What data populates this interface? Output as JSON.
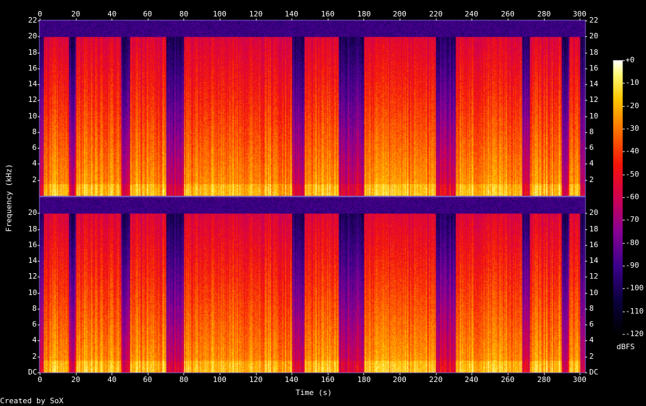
{
  "chart_data": {
    "type": "heatmap",
    "title": "",
    "xlabel": "Time (s)",
    "ylabel": "Frequency (kHz)",
    "x_ticks": [
      0,
      20,
      40,
      60,
      80,
      100,
      120,
      140,
      160,
      180,
      200,
      220,
      240,
      260,
      280,
      300
    ],
    "xlim": [
      0,
      303
    ],
    "y_ticks_top": [
      "2",
      "4",
      "6",
      "8",
      "10",
      "12",
      "14",
      "16",
      "18",
      "20",
      "22"
    ],
    "y_ticks_bottom": [
      "DC",
      "2",
      "4",
      "6",
      "8",
      "10",
      "12",
      "14",
      "16",
      "18",
      "20"
    ],
    "ylim_khz": [
      0,
      22
    ],
    "channels": 2,
    "lowpass_cutoff_khz": 20,
    "quiet_segments_s": [
      [
        0,
        2
      ],
      [
        16,
        20
      ],
      [
        45,
        50
      ],
      [
        70,
        80
      ],
      [
        140,
        147
      ],
      [
        166,
        180
      ],
      [
        220,
        231
      ],
      [
        268,
        272
      ],
      [
        290,
        294
      ],
      [
        300,
        303
      ]
    ],
    "colorbar": {
      "label": "dBFS",
      "ticks": [
        "+0",
        "-10",
        "-20",
        "-30",
        "-40",
        "-50",
        "-60",
        "-70",
        "-80",
        "-90",
        "-100",
        "-110",
        "-120"
      ],
      "range_db": [
        -120,
        0
      ]
    },
    "footer": "Created by SoX",
    "colors": {
      "background": "#000000",
      "text": "#ffffff",
      "frame": "#7a63c8"
    }
  }
}
